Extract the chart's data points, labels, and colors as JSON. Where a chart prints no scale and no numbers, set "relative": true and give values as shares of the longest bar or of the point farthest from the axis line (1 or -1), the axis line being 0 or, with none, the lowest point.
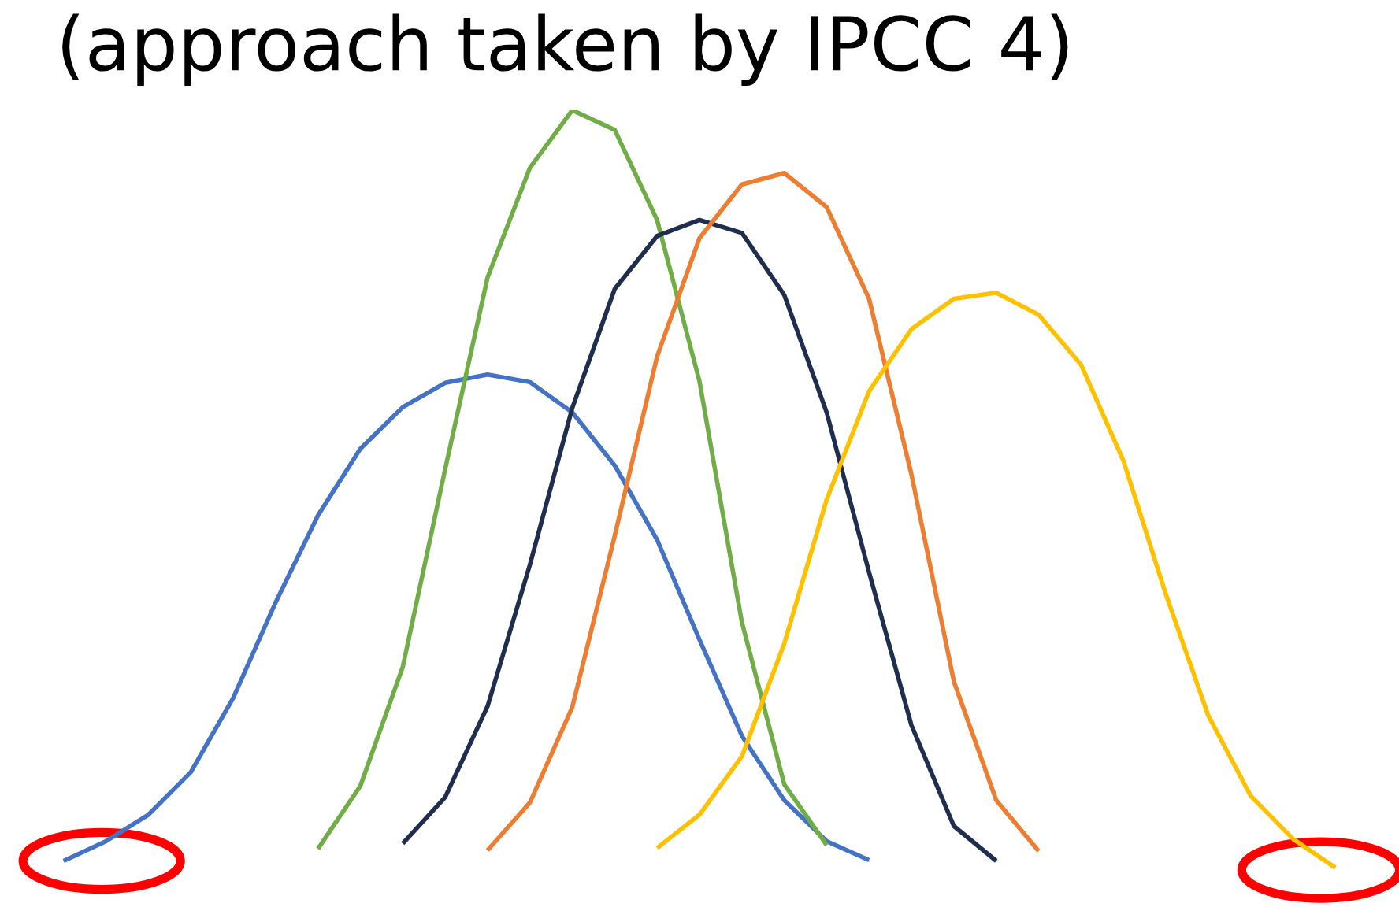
{
  "chart_data": {
    "type": "line",
    "title": "(approach taken by IPCC 4)",
    "relative": true,
    "marker": "none",
    "line_style": "solid",
    "categories": [
      null,
      null,
      null,
      null,
      null,
      null,
      null,
      null,
      null,
      null,
      null,
      null,
      null,
      null,
      null,
      null,
      null,
      null,
      null,
      null,
      null,
      null,
      null,
      null,
      null,
      null,
      null,
      null,
      null,
      null,
      null
    ],
    "series": [
      {
        "color": "#4472c4",
        "values": [
          0.009,
          0.035,
          0.07,
          0.126,
          0.224,
          0.35,
          0.465,
          0.553,
          0.608,
          0.64,
          0.651,
          0.641,
          0.601,
          0.531,
          0.433,
          0.301,
          0.174,
          0.089,
          0.035,
          0.01,
          null,
          null,
          null,
          null,
          null,
          null,
          null,
          null,
          null,
          null,
          null
        ]
      },
      {
        "color": "#70ad47",
        "values": [
          null,
          null,
          null,
          null,
          null,
          null,
          0.025,
          0.108,
          0.265,
          0.526,
          0.779,
          0.924,
          1,
          0.974,
          0.855,
          0.642,
          0.324,
          0.11,
          0.03,
          null,
          null,
          null,
          null,
          null,
          null,
          null,
          null,
          null,
          null,
          null,
          null
        ]
      },
      {
        "color": "#1f2d4e",
        "values": [
          null,
          null,
          null,
          null,
          null,
          null,
          null,
          null,
          0.032,
          0.093,
          0.213,
          0.4,
          0.607,
          0.764,
          0.834,
          0.855,
          0.838,
          0.756,
          0.601,
          0.39,
          0.188,
          0.055,
          0.009,
          null,
          null,
          null,
          null,
          null,
          null,
          null,
          null
        ]
      },
      {
        "color": "#ed7d31",
        "values": [
          null,
          null,
          null,
          null,
          null,
          null,
          null,
          null,
          null,
          null,
          0.023,
          0.086,
          0.212,
          0.438,
          0.675,
          0.831,
          0.902,
          0.917,
          0.872,
          0.751,
          0.519,
          0.246,
          0.089,
          0.022,
          null,
          null,
          null,
          null,
          null,
          null,
          null
        ]
      },
      {
        "color": "#ffc000",
        "values": [
          null,
          null,
          null,
          null,
          null,
          null,
          null,
          null,
          null,
          null,
          null,
          null,
          null,
          null,
          0.026,
          0.07,
          0.147,
          0.296,
          0.486,
          0.629,
          0.711,
          0.751,
          0.759,
          0.73,
          0.664,
          0.537,
          0.361,
          0.201,
          0.095,
          0.038,
          0
        ]
      }
    ]
  }
}
